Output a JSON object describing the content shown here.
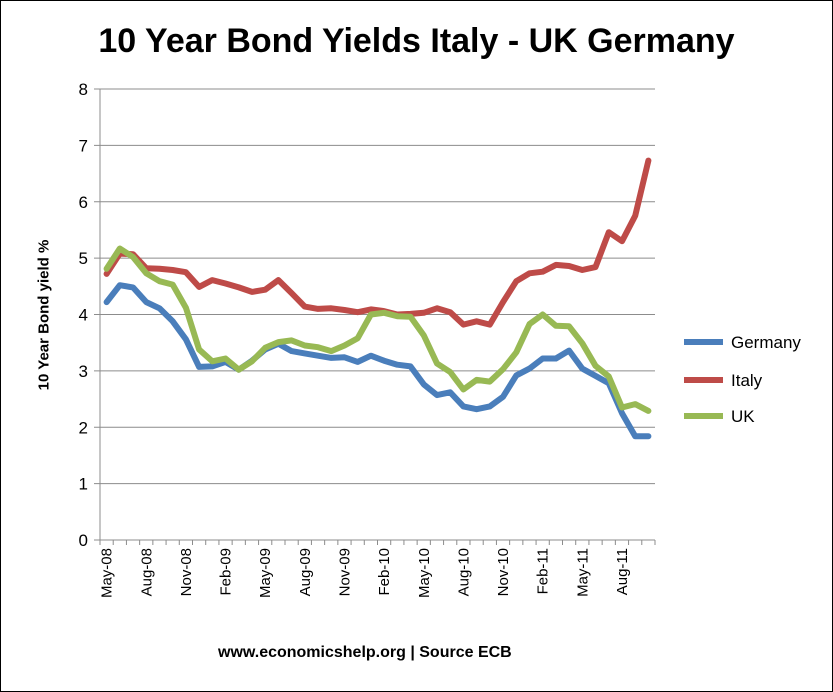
{
  "chart_data": {
    "type": "line",
    "title": "10 Year Bond Yields Italy - UK Germany",
    "xlabel": "",
    "ylabel": "10 Year Bond yield %",
    "footer": "www.economicshelp.org | Source ECB",
    "ylim": [
      0,
      8
    ],
    "yticks": [
      "0",
      "1",
      "2",
      "3",
      "4",
      "5",
      "6",
      "7",
      "8"
    ],
    "xticks": [
      {
        "label": "May-08",
        "index": 0
      },
      {
        "label": "Aug-08",
        "index": 3
      },
      {
        "label": "Nov-08",
        "index": 6
      },
      {
        "label": "Feb-09",
        "index": 9
      },
      {
        "label": "May-09",
        "index": 12
      },
      {
        "label": "Aug-09",
        "index": 15
      },
      {
        "label": "Nov-09",
        "index": 18
      },
      {
        "label": "Feb-10",
        "index": 21
      },
      {
        "label": "May-10",
        "index": 24
      },
      {
        "label": "Aug-10",
        "index": 27
      },
      {
        "label": "Nov-10",
        "index": 30
      },
      {
        "label": "Feb-11",
        "index": 33
      },
      {
        "label": "May-11",
        "index": 36
      },
      {
        "label": "Aug-11",
        "index": 39
      }
    ],
    "n_points": 42,
    "legend_position": "right",
    "series": [
      {
        "name": "Germany",
        "color": "#4a7ebb",
        "values": [
          4.22,
          4.52,
          4.48,
          4.22,
          4.11,
          3.88,
          3.56,
          3.07,
          3.08,
          3.16,
          3.02,
          3.18,
          3.38,
          3.48,
          3.35,
          3.31,
          3.27,
          3.23,
          3.24,
          3.16,
          3.27,
          3.18,
          3.11,
          3.08,
          2.76,
          2.57,
          2.62,
          2.37,
          2.32,
          2.37,
          2.54,
          2.92,
          3.04,
          3.22,
          3.22,
          3.36,
          3.04,
          2.91,
          2.78,
          2.25,
          1.84,
          1.84
        ]
      },
      {
        "name": "Italy",
        "color": "#be4b48",
        "values": [
          4.72,
          5.08,
          5.07,
          4.82,
          4.81,
          4.79,
          4.75,
          4.49,
          4.61,
          4.55,
          4.48,
          4.4,
          4.44,
          4.61,
          4.38,
          4.14,
          4.1,
          4.11,
          4.08,
          4.04,
          4.09,
          4.06,
          4.0,
          4.01,
          4.03,
          4.11,
          4.04,
          3.82,
          3.88,
          3.82,
          4.22,
          4.59,
          4.73,
          4.76,
          4.88,
          4.86,
          4.79,
          4.84,
          5.46,
          5.3,
          5.75,
          6.73
        ]
      },
      {
        "name": "UK",
        "color": "#98b954",
        "values": [
          4.81,
          5.17,
          5.02,
          4.73,
          4.59,
          4.53,
          4.12,
          3.38,
          3.17,
          3.22,
          3.02,
          3.17,
          3.41,
          3.51,
          3.54,
          3.45,
          3.42,
          3.35,
          3.45,
          3.58,
          4.0,
          4.03,
          3.97,
          3.96,
          3.63,
          3.13,
          2.98,
          2.67,
          2.84,
          2.81,
          3.03,
          3.33,
          3.83,
          4.0,
          3.8,
          3.79,
          3.49,
          3.09,
          2.9,
          2.35,
          2.41,
          2.29
        ]
      }
    ]
  }
}
